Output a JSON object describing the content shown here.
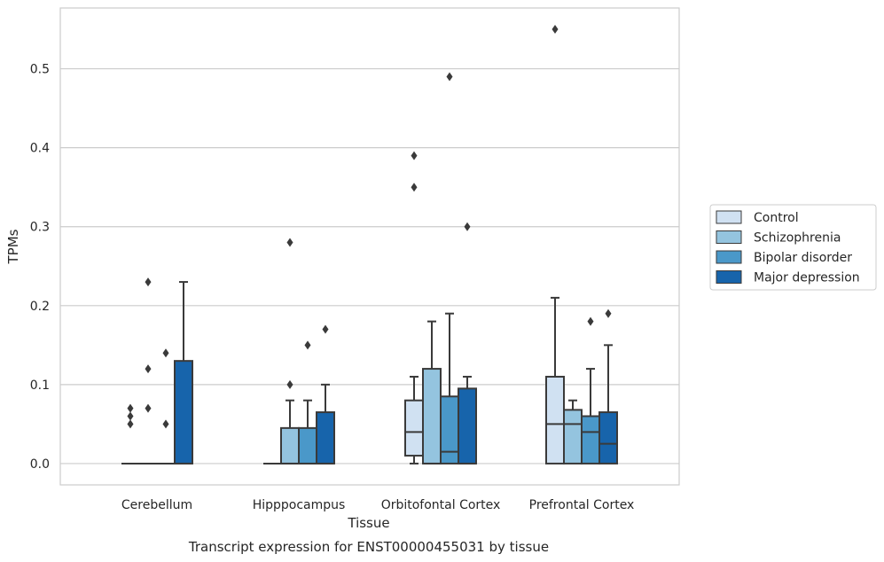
{
  "chart_data": {
    "type": "box",
    "caption": "Transcript expression for ENST00000455031 by tissue",
    "xlabel": "Tissue",
    "ylabel": "TPMs",
    "ylim": [
      -0.027,
      0.577
    ],
    "yticks": [
      "0.0",
      "0.1",
      "0.2",
      "0.3",
      "0.4",
      "0.5"
    ],
    "grid": true,
    "legend_position": "right",
    "categories": [
      "Cerebellum",
      "Hipppocampus",
      "Orbitofontal Cortex",
      "Prefrontal Cortex"
    ],
    "series": [
      {
        "name": "Control",
        "color": "#d0e1f2",
        "boxes": [
          {
            "min": 0,
            "q1": 0,
            "median": 0,
            "q3": 0,
            "max": 0,
            "outliers": [
              0.05,
              0.06,
              0.07
            ]
          },
          {
            "min": 0,
            "q1": 0,
            "median": 0,
            "q3": 0,
            "max": 0,
            "outliers": []
          },
          {
            "min": 0,
            "q1": 0.01,
            "median": 0.04,
            "q3": 0.08,
            "max": 0.11,
            "outliers": [
              0.35,
              0.39
            ]
          },
          {
            "min": 0,
            "q1": 0,
            "median": 0.05,
            "q3": 0.11,
            "max": 0.21,
            "outliers": [
              0.55
            ]
          }
        ]
      },
      {
        "name": "Schizophrenia",
        "color": "#94c4df",
        "boxes": [
          {
            "min": 0,
            "q1": 0,
            "median": 0,
            "q3": 0,
            "max": 0,
            "outliers": [
              0.07,
              0.12,
              0.23
            ]
          },
          {
            "min": 0,
            "q1": 0,
            "median": 0,
            "q3": 0.045,
            "max": 0.08,
            "outliers": [
              0.1,
              0.28
            ]
          },
          {
            "min": 0,
            "q1": 0,
            "median": 0,
            "q3": 0.12,
            "max": 0.18,
            "outliers": []
          },
          {
            "min": 0,
            "q1": 0,
            "median": 0.05,
            "q3": 0.068,
            "max": 0.08,
            "outliers": []
          }
        ]
      },
      {
        "name": "Bipolar disorder",
        "color": "#4a98c9",
        "boxes": [
          {
            "min": 0,
            "q1": 0,
            "median": 0,
            "q3": 0,
            "max": 0,
            "outliers": [
              0.05,
              0.14
            ]
          },
          {
            "min": 0,
            "q1": 0,
            "median": 0,
            "q3": 0.045,
            "max": 0.08,
            "outliers": [
              0.15
            ]
          },
          {
            "min": 0,
            "q1": 0,
            "median": 0.015,
            "q3": 0.085,
            "max": 0.19,
            "outliers": [
              0.49
            ]
          },
          {
            "min": 0,
            "q1": 0,
            "median": 0.04,
            "q3": 0.06,
            "max": 0.12,
            "outliers": [
              0.18
            ]
          }
        ]
      },
      {
        "name": "Major depression",
        "color": "#1764ab",
        "boxes": [
          {
            "min": 0,
            "q1": 0,
            "median": 0,
            "q3": 0.13,
            "max": 0.23,
            "outliers": []
          },
          {
            "min": 0,
            "q1": 0,
            "median": 0,
            "q3": 0.065,
            "max": 0.1,
            "outliers": [
              0.17
            ]
          },
          {
            "min": 0,
            "q1": 0,
            "median": 0,
            "q3": 0.095,
            "max": 0.11,
            "outliers": [
              0.3
            ]
          },
          {
            "min": 0,
            "q1": 0,
            "median": 0.025,
            "q3": 0.065,
            "max": 0.15,
            "outliers": [
              0.19
            ]
          }
        ]
      }
    ]
  }
}
